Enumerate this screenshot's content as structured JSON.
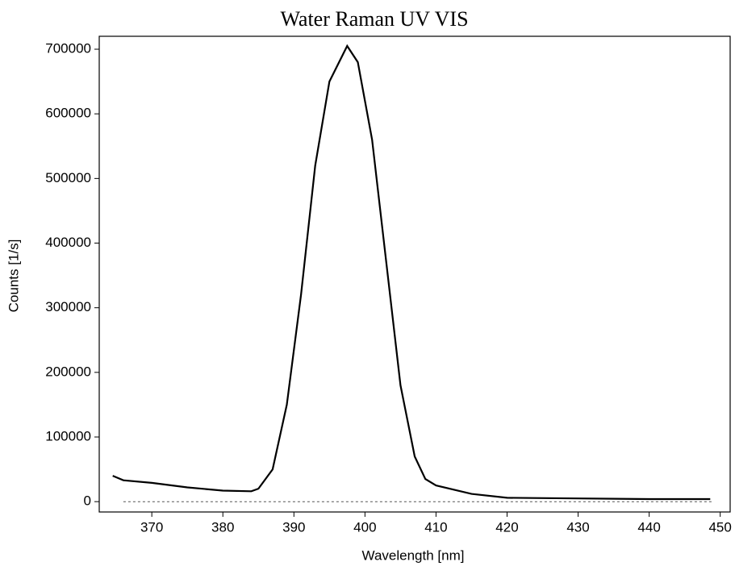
{
  "chart_data": {
    "type": "line",
    "title": "Water Raman UV VIS",
    "x_label": "Wavelength [nm]",
    "y_label": "Counts [1/s]",
    "xlim": [
      362.6,
      451.4
    ],
    "ylim": [
      -16000,
      720000
    ],
    "xticks": [
      370,
      380,
      390,
      400,
      410,
      420,
      430,
      440,
      450
    ],
    "yticks": [
      0,
      100000,
      200000,
      300000,
      400000,
      500000,
      600000,
      700000
    ],
    "series": [
      {
        "color": "#000000",
        "dash": false,
        "x": [
          364.5,
          366,
          370,
          375,
          380,
          384,
          385,
          387,
          389,
          391,
          393,
          395,
          397.5,
          399,
          401,
          403,
          405,
          407,
          408.5,
          410,
          415,
          420,
          430,
          440,
          448.6
        ],
        "values": [
          40000,
          33000,
          29000,
          22000,
          17000,
          16000,
          20000,
          50000,
          150000,
          320000,
          520000,
          650000,
          705000,
          680000,
          560000,
          370000,
          180000,
          70000,
          35000,
          25000,
          12000,
          6000,
          5000,
          4000,
          4000
        ]
      },
      {
        "color": "#555555",
        "dash": true,
        "x": [
          366,
          449
        ],
        "values": [
          0,
          0
        ]
      }
    ]
  }
}
